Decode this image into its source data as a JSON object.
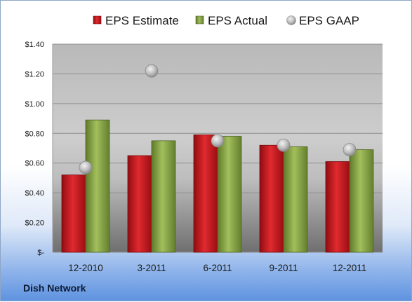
{
  "company": "Dish Network",
  "chart_data": {
    "type": "bar",
    "categories": [
      "12-2010",
      "3-2011",
      "6-2011",
      "9-2011",
      "12-2011"
    ],
    "series": [
      {
        "name": "EPS Estimate",
        "kind": "bar",
        "color": "#c8151b",
        "values": [
          0.52,
          0.65,
          0.79,
          0.72,
          0.61
        ]
      },
      {
        "name": "EPS Actual",
        "kind": "bar",
        "color": "#8aa64a",
        "values": [
          0.89,
          0.75,
          0.78,
          0.71,
          0.69
        ]
      },
      {
        "name": "EPS GAAP",
        "kind": "scatter",
        "color": "#b7b7b7",
        "values": [
          0.57,
          1.22,
          0.75,
          0.72,
          0.69
        ]
      }
    ],
    "yticks": [
      "$1.40",
      "$1.20",
      "$1.00",
      "$0.80",
      "$0.60",
      "$0.40",
      "$0.20",
      "$-"
    ],
    "ylim": [
      0,
      1.4
    ],
    "grid": true,
    "legend": "top"
  }
}
